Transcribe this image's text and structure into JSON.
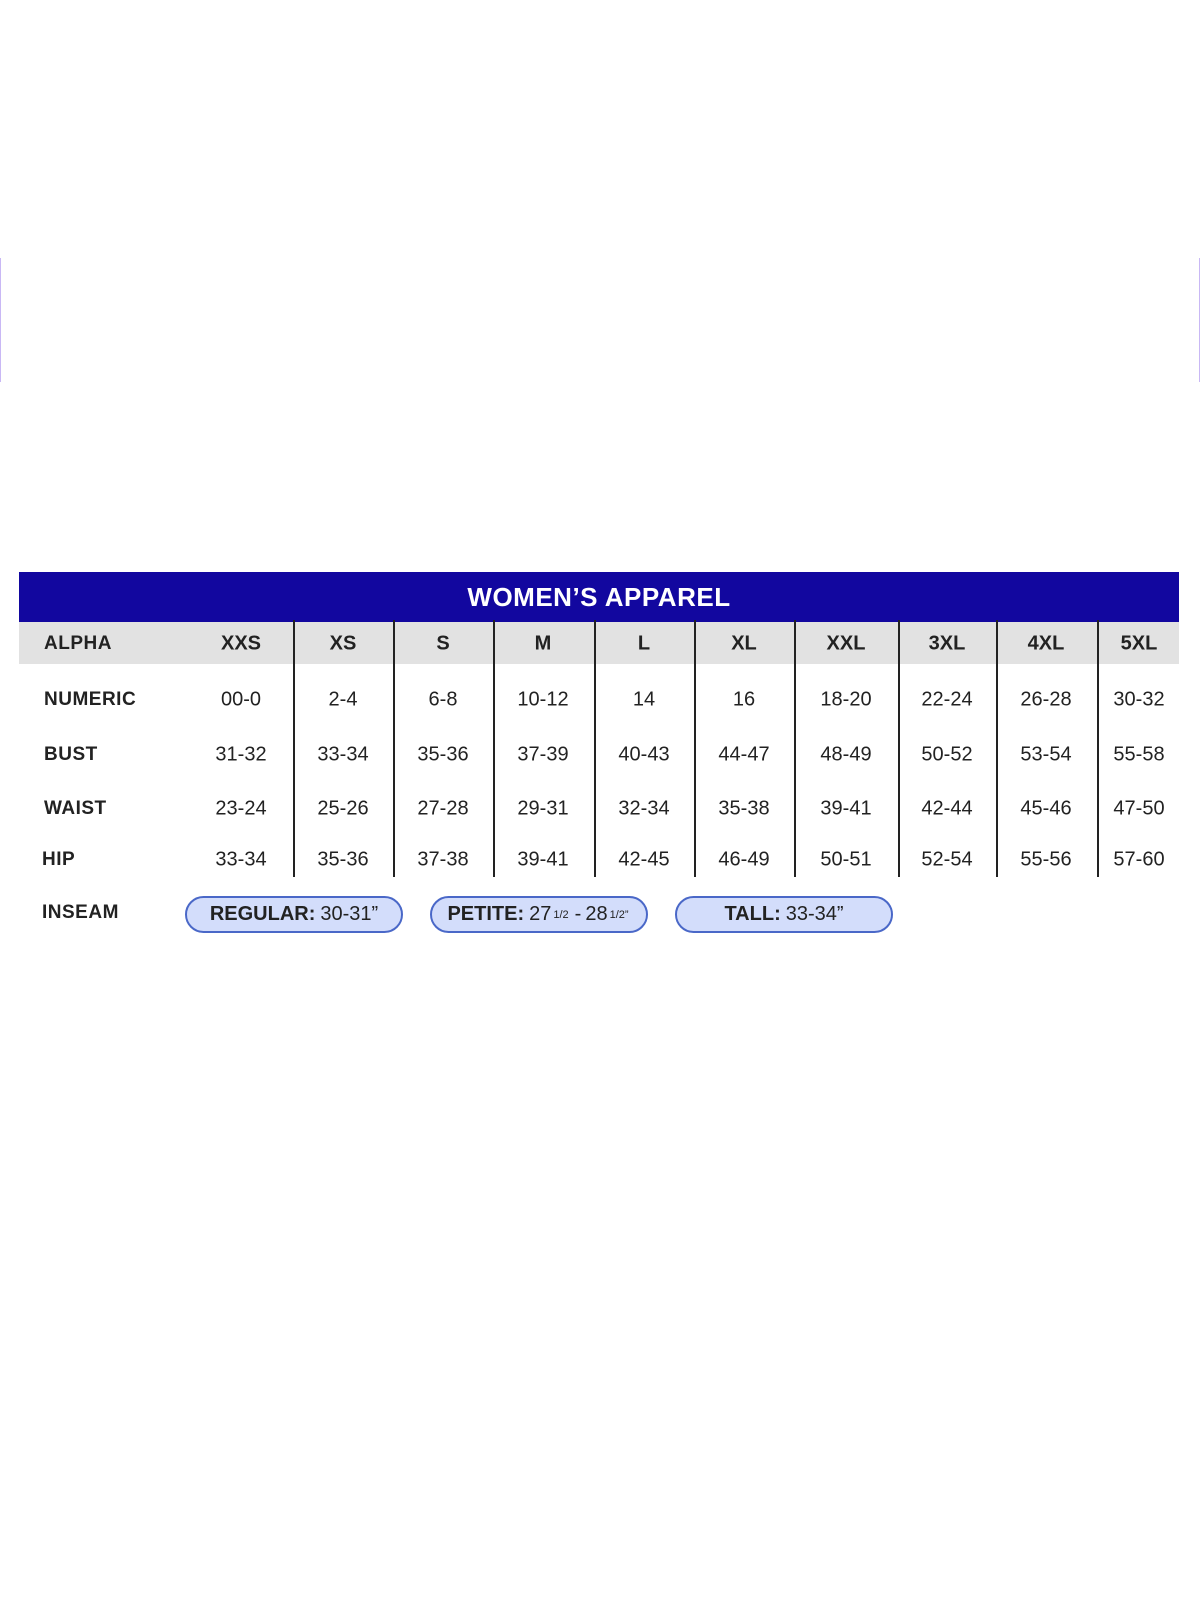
{
  "title": "WOMEN’S APPAREL",
  "colors": {
    "header": "#12079f",
    "alpha_band": "#e2e2e2",
    "pill_fill": "#d3ddfb",
    "pill_border": "#4a68c8"
  },
  "rows": [
    {
      "label": "ALPHA",
      "values": [
        "XXS",
        "XS",
        "S",
        "M",
        "L",
        "XL",
        "XXL",
        "3XL",
        "4XL",
        "5XL"
      ]
    },
    {
      "label": "NUMERIC",
      "values": [
        "00-0",
        "2-4",
        "6-8",
        "10-12",
        "14",
        "16",
        "18-20",
        "22-24",
        "26-28",
        "30-32"
      ]
    },
    {
      "label": "BUST",
      "values": [
        "31-32",
        "33-34",
        "35-36",
        "37-39",
        "40-43",
        "44-47",
        "48-49",
        "50-52",
        "53-54",
        "55-58"
      ]
    },
    {
      "label": "WAIST",
      "values": [
        "23-24",
        "25-26",
        "27-28",
        "29-31",
        "32-34",
        "35-38",
        "39-41",
        "42-44",
        "45-46",
        "47-50"
      ]
    },
    {
      "label": "HIP",
      "values": [
        "33-34",
        "35-36",
        "37-38",
        "39-41",
        "42-45",
        "46-49",
        "50-51",
        "52-54",
        "55-56",
        "57-60"
      ]
    }
  ],
  "inseam": {
    "label": "INSEAM",
    "regular": {
      "name": "REGULAR:",
      "value": "30-31”"
    },
    "petite": {
      "name": "PETITE:",
      "whole1": "27",
      "frac1": "1/2",
      "sep": "-",
      "whole2": "28",
      "frac2": "1/2”"
    },
    "tall": {
      "name": "TALL:",
      "value": "33-34”"
    }
  }
}
